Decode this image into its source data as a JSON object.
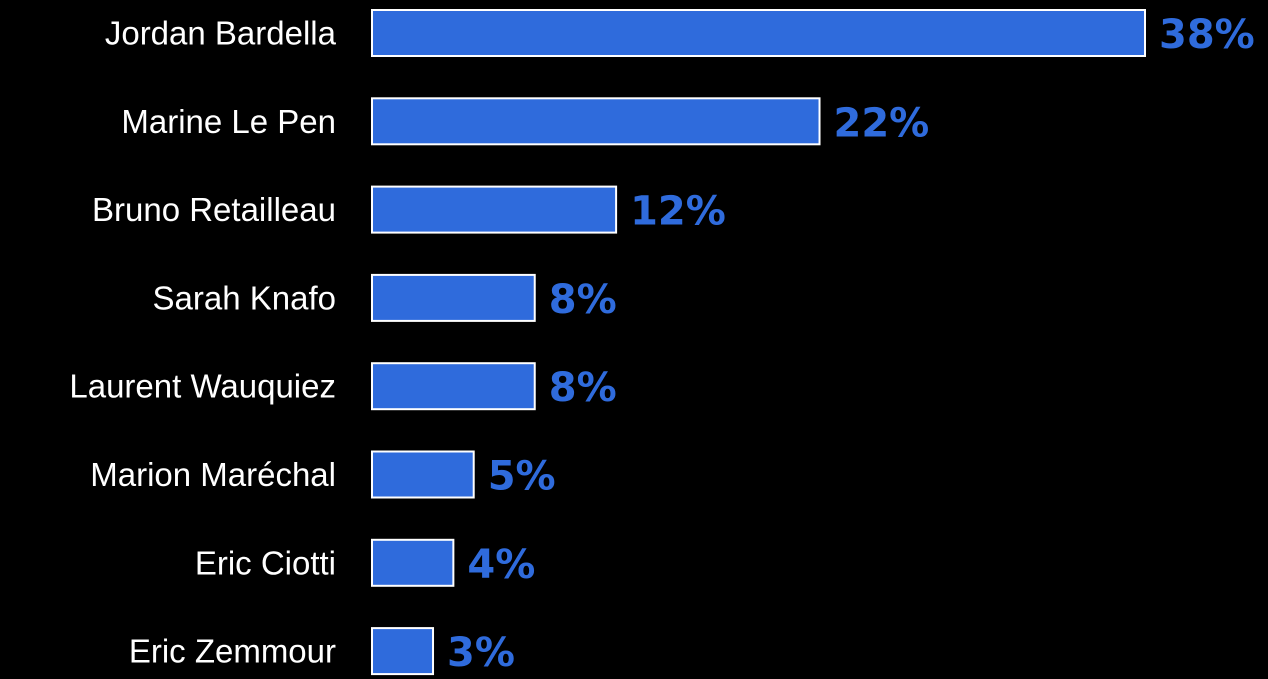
{
  "colors": {
    "background": "#000000",
    "bar_fill": "#2f6bdc",
    "bar_stroke": "#ffffff",
    "label_text": "#ffffff",
    "value_text": "#2f6bdc"
  },
  "chart_data": {
    "type": "bar",
    "orientation": "horizontal",
    "title": "",
    "xlabel": "",
    "ylabel": "",
    "grid": false,
    "legend": "none",
    "xlim": [
      0,
      38
    ],
    "categories": [
      "Jordan Bardella",
      "Marine Le Pen",
      "Bruno Retailleau",
      "Sarah Knafo",
      "Laurent Wauquiez",
      "Marion Maréchal",
      "Eric Ciotti",
      "Eric Zemmour"
    ],
    "values": [
      38,
      22,
      12,
      8,
      8,
      5,
      4,
      3
    ],
    "value_labels": [
      "38%",
      "22%",
      "12%",
      "8%",
      "8%",
      "5%",
      "4%",
      "3%"
    ]
  }
}
